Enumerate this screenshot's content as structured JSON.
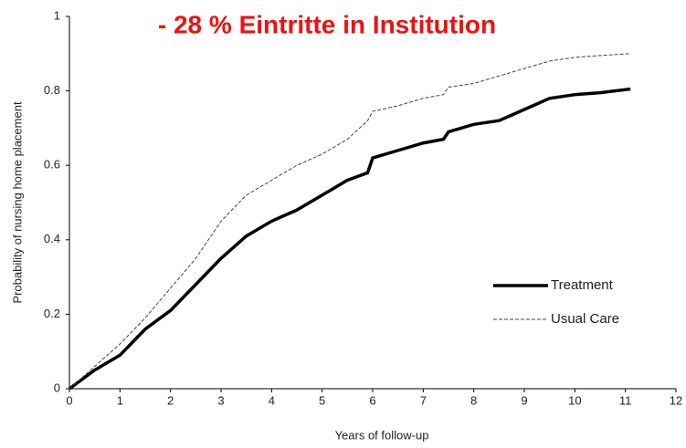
{
  "chart_data": {
    "type": "line",
    "title": "- 28 % Eintritte in Institution",
    "x_label": "Years of follow-up",
    "y_label": "Probability of nursing home placement",
    "x": [
      0,
      0.5,
      1,
      1.5,
      2,
      2.5,
      3,
      3.5,
      4,
      4.5,
      5,
      5.5,
      5.9,
      6,
      6.5,
      7,
      7.4,
      7.5,
      8,
      8.5,
      9,
      9.5,
      10,
      10.5,
      11.1
    ],
    "series": [
      {
        "name": "Treatment",
        "color": "#000000",
        "style": "solid",
        "values": [
          0,
          0.05,
          0.09,
          0.16,
          0.21,
          0.28,
          0.35,
          0.41,
          0.45,
          0.48,
          0.52,
          0.56,
          0.58,
          0.62,
          0.64,
          0.66,
          0.67,
          0.69,
          0.71,
          0.72,
          0.75,
          0.78,
          0.79,
          0.795,
          0.805
        ]
      },
      {
        "name": "Usual Care",
        "color": "#444444",
        "style": "dashed",
        "values": [
          0,
          0.06,
          0.12,
          0.19,
          0.27,
          0.35,
          0.45,
          0.52,
          0.56,
          0.6,
          0.63,
          0.67,
          0.72,
          0.745,
          0.76,
          0.78,
          0.79,
          0.81,
          0.82,
          0.84,
          0.86,
          0.88,
          0.89,
          0.895,
          0.9
        ]
      }
    ],
    "xlim": [
      0,
      12
    ],
    "xticks": [
      0,
      1,
      2,
      3,
      4,
      5,
      6,
      7,
      8,
      9,
      10,
      11,
      12
    ],
    "ylim": [
      0,
      1
    ],
    "yticks": [
      0,
      0.2,
      0.4,
      0.6,
      0.8,
      1
    ],
    "legend": "lower-right"
  }
}
